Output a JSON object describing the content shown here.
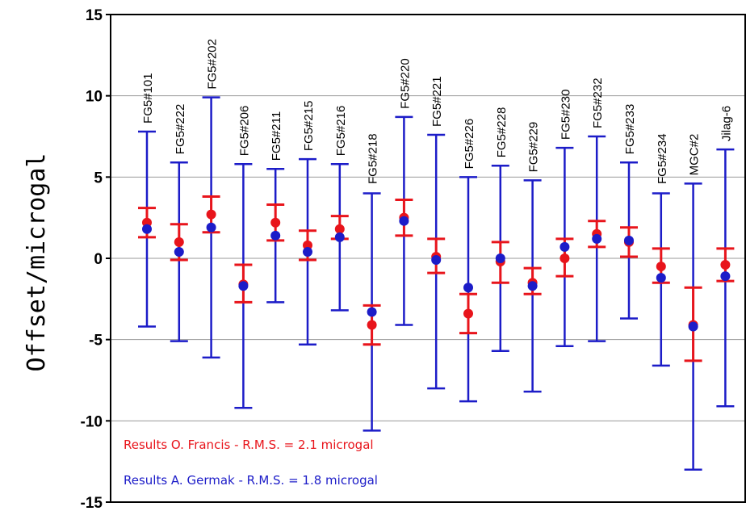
{
  "chart_data": {
    "type": "scatter",
    "title": "",
    "xlabel": "",
    "ylabel": "Offset/microgal",
    "ylim": [
      -15,
      15
    ],
    "yticks": [
      15,
      10,
      5,
      0,
      -5,
      -10,
      -15
    ],
    "grid": true,
    "legend_placement": "bottom-left",
    "categories": [
      "FG5#101",
      "FG5#222",
      "FG5#202",
      "FG5#206",
      "FG5#211",
      "FG5#215",
      "FG5#216",
      "FG5#218",
      "FG5#220",
      "FG5#221",
      "FG5#226",
      "FG5#228",
      "FG5#229",
      "FG5#230",
      "FG5#232",
      "FG5#233",
      "FG5#234",
      "MGC#2",
      "Jilag-6"
    ],
    "series": [
      {
        "name": "Results O. Francis - R.M.S. = 2.1 microgal",
        "color": "#e8141b",
        "values": [
          2.2,
          1.0,
          2.7,
          -1.6,
          2.2,
          0.8,
          1.8,
          -4.1,
          2.5,
          0.1,
          -3.4,
          -0.2,
          -1.5,
          0.0,
          1.5,
          1.0,
          -0.5,
          -4.1,
          -0.4
        ],
        "err_low": [
          1.3,
          -0.1,
          1.6,
          -2.7,
          1.1,
          -0.1,
          1.2,
          -5.3,
          1.4,
          -0.9,
          -4.6,
          -1.5,
          -2.2,
          -1.1,
          0.7,
          0.1,
          -1.5,
          -6.3,
          -1.4
        ],
        "err_high": [
          3.1,
          2.1,
          3.8,
          -0.4,
          3.3,
          1.7,
          2.6,
          -2.9,
          3.6,
          1.2,
          -2.2,
          1.0,
          -0.6,
          1.2,
          2.3,
          1.9,
          0.6,
          -1.8,
          0.6
        ]
      },
      {
        "name": "Results A. Germak - R.M.S. = 1.8 microgal",
        "color": "#1c1cc8",
        "values": [
          1.8,
          0.4,
          1.9,
          -1.7,
          1.4,
          0.4,
          1.3,
          -3.3,
          2.3,
          -0.1,
          -1.8,
          0.0,
          -1.7,
          0.7,
          1.2,
          1.1,
          -1.2,
          -4.2,
          -1.1
        ],
        "err_low": [
          -4.2,
          -5.1,
          -6.1,
          -9.2,
          -2.7,
          -5.3,
          -3.2,
          -10.6,
          -4.1,
          -8.0,
          -8.8,
          -5.7,
          -8.2,
          -5.4,
          -5.1,
          -3.7,
          -6.6,
          -13.0,
          -9.1
        ],
        "err_high": [
          7.8,
          5.9,
          9.9,
          5.8,
          5.5,
          6.1,
          5.8,
          4.0,
          8.7,
          7.6,
          5.0,
          5.7,
          4.8,
          6.8,
          7.5,
          5.9,
          4.0,
          4.6,
          6.7
        ]
      }
    ]
  }
}
